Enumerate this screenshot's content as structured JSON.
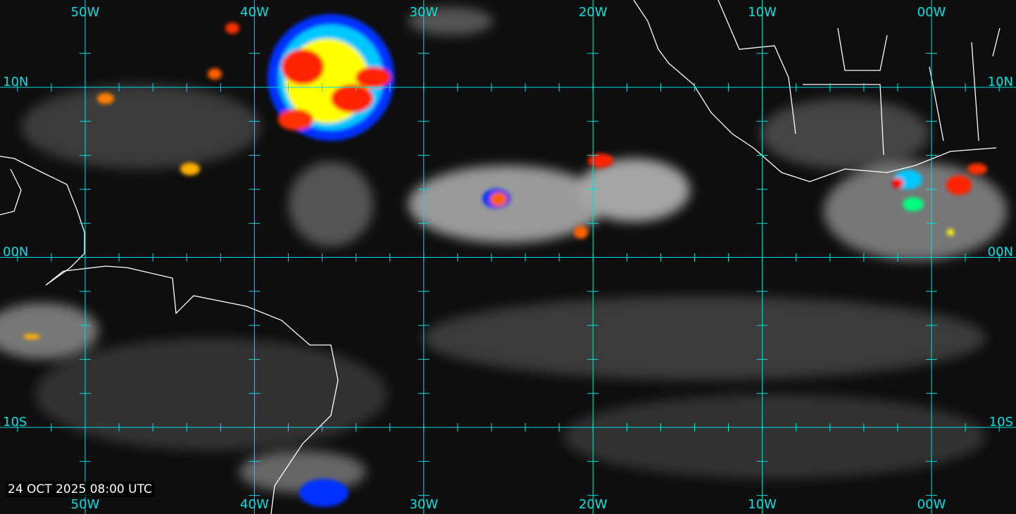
{
  "timestamp": "24 OCT 2025 08:00 UTC",
  "grid_color": "#00e0e0",
  "longitudes": [
    "50W",
    "40W",
    "30W",
    "20W",
    "10W",
    "00W"
  ],
  "latitudes": [
    "10N",
    "00N",
    "10S"
  ],
  "coastline_color": "#ffffff",
  "colorscale": [
    "#0000ff",
    "#00c8ff",
    "#00ff80",
    "#ffff00",
    "#ff8000",
    "#ff0000"
  ]
}
